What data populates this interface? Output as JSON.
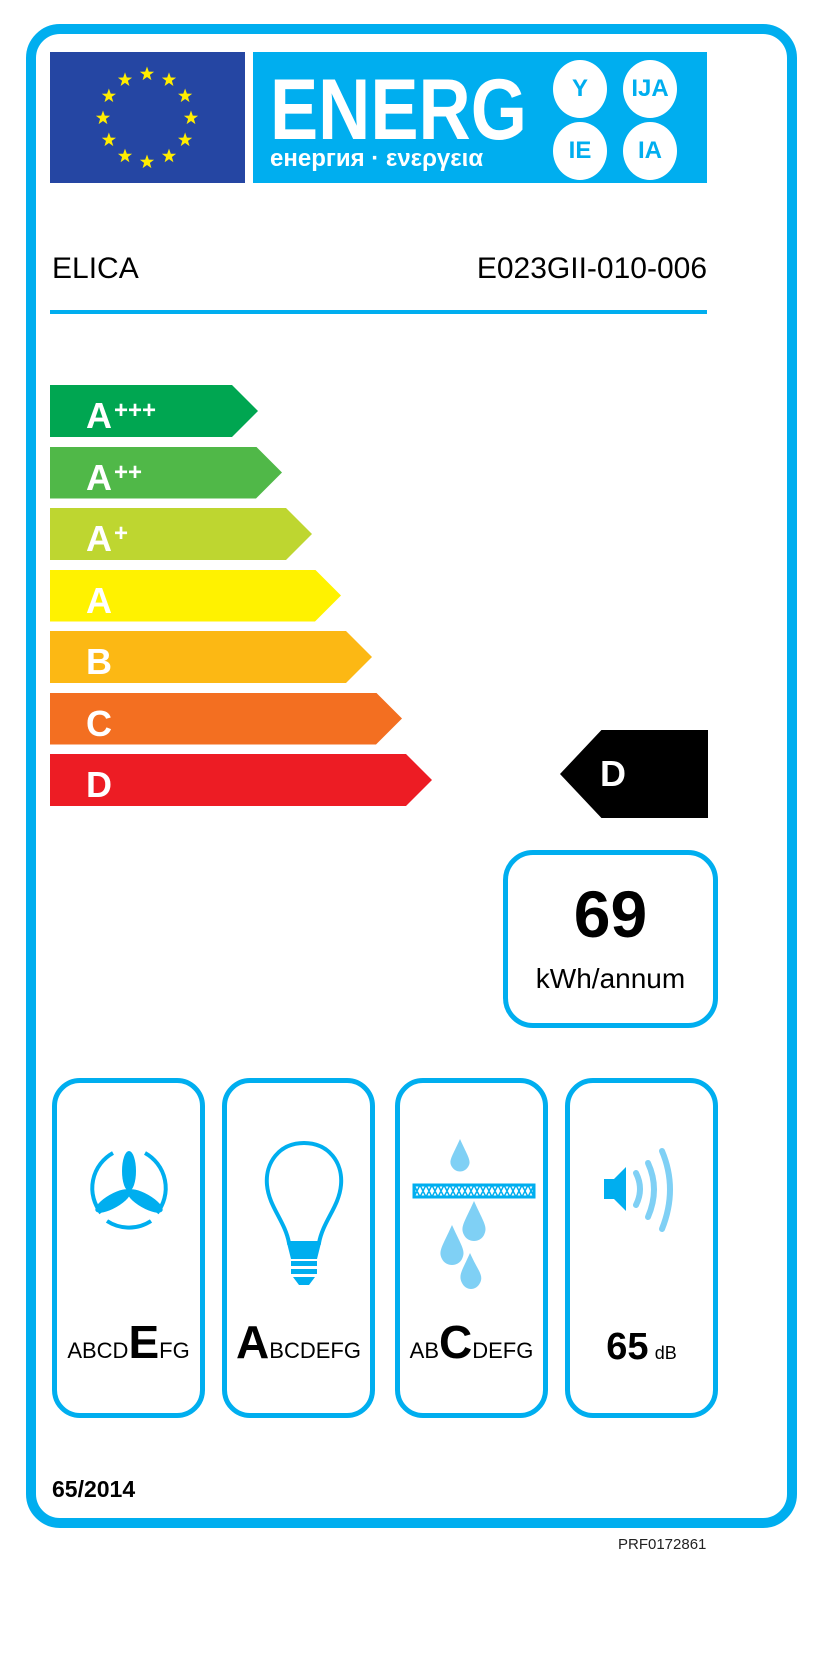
{
  "header": {
    "energy_word": "ENERG",
    "energy_sub": "енергия · ενεργεια",
    "circles": [
      "Y",
      "IJA",
      "IE",
      "IA"
    ]
  },
  "supplier": "ELICA",
  "model": "E023GII-010-006",
  "classes": [
    {
      "letter": "A",
      "plus": "+++",
      "color": "#00a651"
    },
    {
      "letter": "A",
      "plus": "++",
      "color": "#50b848"
    },
    {
      "letter": "A",
      "plus": "+",
      "color": "#bed630"
    },
    {
      "letter": "A",
      "plus": "",
      "color": "#fff200"
    },
    {
      "letter": "B",
      "plus": "",
      "color": "#fcb814"
    },
    {
      "letter": "C",
      "plus": "",
      "color": "#f36f21"
    },
    {
      "letter": "D",
      "plus": "",
      "color": "#ed1c24"
    }
  ],
  "rating": "D",
  "consumption": {
    "value": "69",
    "unit": "kWh/annum"
  },
  "fluid_dynamic": {
    "before": "ABCD",
    "selected": "E",
    "after": "FG",
    "icon": "fan-icon"
  },
  "lighting": {
    "before": "",
    "selected": "A",
    "after": "BCDEFG",
    "icon": "light-bulb-icon"
  },
  "grease_filtering": {
    "before": "AB",
    "selected": "C",
    "after": "DEFG",
    "icon": "grease-filter-icon"
  },
  "noise": {
    "value": "65",
    "unit": "dB",
    "icon": "speaker-icon"
  },
  "regulation": "65/2014",
  "product_code": "PRF0172861",
  "colors": {
    "accent": "#00aeef",
    "flag": "#2546a3",
    "stars": "#ffed00"
  }
}
